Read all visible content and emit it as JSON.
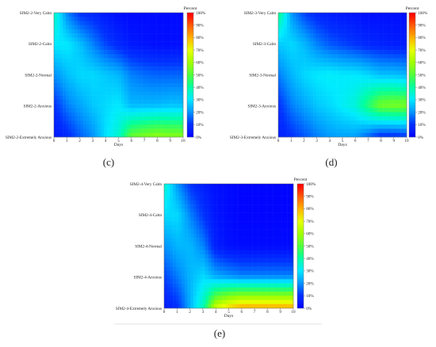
{
  "figure": {
    "panels": [
      {
        "panel_label": "(c)",
        "colorbar_title": "Percent",
        "x_axis_label": "Days",
        "y_labels": [
          "SIM2-2-Very Calm",
          "SIM2-2-Calm",
          "SIM2-2-Normal",
          "SIM2-2-Anxious",
          "SIM2-2-Extremely Anxious"
        ]
      },
      {
        "panel_label": "(d)",
        "colorbar_title": "Percent",
        "x_axis_label": "Days",
        "y_labels": [
          "SIM2-3-Very Calm",
          "SIM2-3-Calm",
          "SIM2-3-Normal",
          "SIM2-3-Anxious",
          "SIM2-3-Extremely Anxious"
        ]
      },
      {
        "panel_label": "(e)",
        "colorbar_title": "Percent",
        "x_axis_label": "Days",
        "y_labels": [
          "SIM2-4-Very Calm",
          "SIM2-4-Calm",
          "SIM2-4-Normal",
          "SIM2-4-Anxious",
          "SIM2-4-Extremely Anxious"
        ]
      }
    ],
    "colorbar_ticks": [
      "0%",
      "10%",
      "20%",
      "30%",
      "40%",
      "50%",
      "60%",
      "70%",
      "80%",
      "90%",
      "100%"
    ],
    "x_ticks": [
      "0",
      "1",
      "2",
      "3",
      "4",
      "5",
      "6",
      "7",
      "8",
      "9",
      "10"
    ]
  },
  "chart_data": [
    {
      "type": "heatmap",
      "title": "(c)",
      "xlabel": "Days",
      "ylabel": "",
      "x": [
        0,
        1,
        2,
        3,
        4,
        5,
        6,
        7,
        8,
        9,
        10
      ],
      "y": [
        "SIM2-2-Very Calm",
        "SIM2-2-Calm",
        "SIM2-2-Normal",
        "SIM2-2-Anxious",
        "SIM2-2-Extremely Anxious"
      ],
      "z": [
        [
          35,
          18,
          10,
          8,
          5,
          3,
          2,
          2,
          2,
          2,
          2
        ],
        [
          30,
          30,
          25,
          18,
          12,
          8,
          5,
          4,
          3,
          3,
          3
        ],
        [
          20,
          25,
          28,
          28,
          26,
          24,
          18,
          16,
          15,
          15,
          15
        ],
        [
          10,
          18,
          22,
          26,
          28,
          30,
          24,
          24,
          24,
          25,
          25
        ],
        [
          5,
          9,
          15,
          20,
          29,
          35,
          51,
          54,
          56,
          55,
          55
        ]
      ],
      "colorbar": {
        "title": "Percent",
        "min": 0,
        "max": 100,
        "unit": "%"
      }
    },
    {
      "type": "heatmap",
      "title": "(d)",
      "xlabel": "Days",
      "ylabel": "",
      "x": [
        0,
        1,
        2,
        3,
        4,
        5,
        6,
        7,
        8,
        9,
        10
      ],
      "y": [
        "SIM2-3-Very Calm",
        "SIM2-3-Calm",
        "SIM2-3-Normal",
        "SIM2-3-Anxious",
        "SIM2-3-Extremely Anxious"
      ],
      "z": [
        [
          40,
          20,
          12,
          8,
          6,
          5,
          4,
          3,
          3,
          3,
          3
        ],
        [
          26,
          28,
          24,
          18,
          14,
          12,
          10,
          8,
          7,
          6,
          6
        ],
        [
          18,
          24,
          28,
          30,
          31,
          30,
          30,
          28,
          25,
          25,
          24
        ],
        [
          10,
          18,
          22,
          26,
          28,
          31,
          34,
          44,
          54,
          55,
          55
        ],
        [
          6,
          10,
          14,
          18,
          21,
          22,
          22,
          17,
          11,
          11,
          12
        ]
      ],
      "colorbar": {
        "title": "Percent",
        "min": 0,
        "max": 100,
        "unit": "%"
      }
    },
    {
      "type": "heatmap",
      "title": "(e)",
      "xlabel": "Days",
      "ylabel": "",
      "x": [
        0,
        1,
        2,
        3,
        4,
        5,
        6,
        7,
        8,
        9,
        10
      ],
      "y": [
        "SIM2-4-Very Calm",
        "SIM2-4-Calm",
        "SIM2-4-Normal",
        "SIM2-4-Anxious",
        "SIM2-4-Extremely Anxious"
      ],
      "z": [
        [
          34,
          20,
          10,
          6,
          3,
          2,
          1,
          1,
          1,
          1,
          1
        ],
        [
          28,
          28,
          18,
          10,
          4,
          2,
          1,
          1,
          1,
          1,
          1
        ],
        [
          20,
          24,
          24,
          18,
          6,
          3,
          2,
          2,
          2,
          2,
          2
        ],
        [
          12,
          18,
          24,
          28,
          22,
          20,
          18,
          18,
          18,
          18,
          18
        ],
        [
          6,
          10,
          24,
          38,
          65,
          73,
          78,
          78,
          78,
          78,
          78
        ]
      ],
      "colorbar": {
        "title": "Percent",
        "min": 0,
        "max": 100,
        "unit": "%"
      }
    }
  ]
}
